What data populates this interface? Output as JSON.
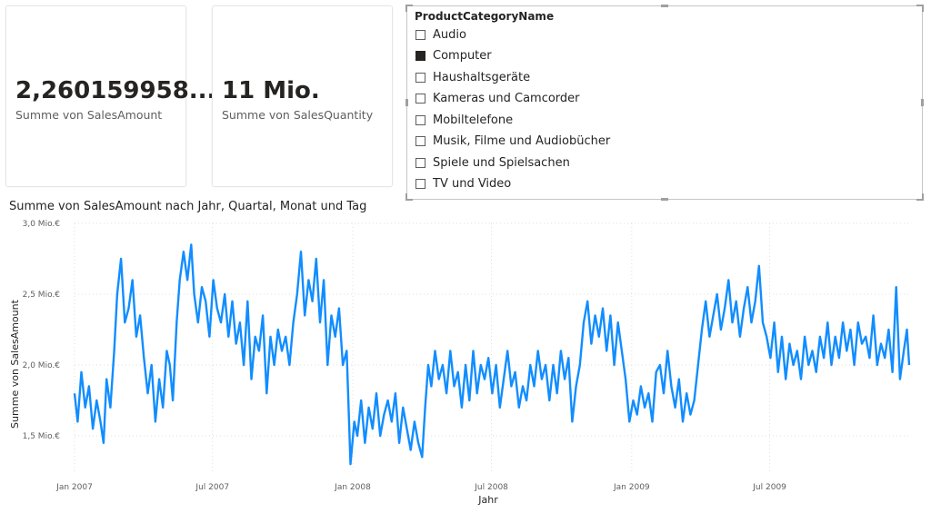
{
  "cards": [
    {
      "value": "2,260159958...",
      "label": "Summe von SalesAmount"
    },
    {
      "value": "11 Mio.",
      "label": "Summe von SalesQuantity"
    }
  ],
  "slicer": {
    "title": "ProductCategoryName",
    "items": [
      {
        "label": "Audio",
        "checked": false
      },
      {
        "label": "Computer",
        "checked": true
      },
      {
        "label": "Haushaltsgeräte",
        "checked": false
      },
      {
        "label": "Kameras und Camcorder",
        "checked": false
      },
      {
        "label": "Mobiltelefone",
        "checked": false
      },
      {
        "label": "Musik, Filme und Audiobücher",
        "checked": false
      },
      {
        "label": "Spiele und Spielsachen",
        "checked": false
      },
      {
        "label": "TV und Video",
        "checked": false
      }
    ]
  },
  "chart_data": {
    "type": "line",
    "title": "Summe von SalesAmount nach Jahr, Quartal, Monat und Tag",
    "xlabel": "Jahr",
    "ylabel": "Summe von SalesAmount",
    "x_range": [
      "2007-01-01",
      "2009-12-31"
    ],
    "ylim": [
      1.25,
      3.0
    ],
    "y_unit": "Mio.€",
    "y_ticks": [
      {
        "value": 1.5,
        "label": "1,5 Mio.€"
      },
      {
        "value": 2.0,
        "label": "2,0 Mio.€"
      },
      {
        "value": 2.5,
        "label": "2,5 Mio.€"
      },
      {
        "value": 3.0,
        "label": "3,0 Mio.€"
      }
    ],
    "x_ticks": [
      {
        "date": "2007-01-01",
        "label": "Jan 2007"
      },
      {
        "date": "2007-07-01",
        "label": "Jul 2007"
      },
      {
        "date": "2008-01-01",
        "label": "Jan 2008"
      },
      {
        "date": "2008-07-01",
        "label": "Jul 2008"
      },
      {
        "date": "2009-01-01",
        "label": "Jan 2009"
      },
      {
        "date": "2009-07-01",
        "label": "Jul 2009"
      }
    ],
    "grid": true,
    "color": "#118DFF",
    "series": [
      {
        "points": [
          [
            "2007-01-01",
            1.8
          ],
          [
            "2007-01-05",
            1.6
          ],
          [
            "2007-01-10",
            1.95
          ],
          [
            "2007-01-15",
            1.7
          ],
          [
            "2007-01-20",
            1.85
          ],
          [
            "2007-01-25",
            1.55
          ],
          [
            "2007-01-30",
            1.75
          ],
          [
            "2007-02-04",
            1.6
          ],
          [
            "2007-02-08",
            1.45
          ],
          [
            "2007-02-12",
            1.9
          ],
          [
            "2007-02-17",
            1.7
          ],
          [
            "2007-02-22",
            2.1
          ],
          [
            "2007-02-26",
            2.5
          ],
          [
            "2007-03-03",
            2.75
          ],
          [
            "2007-03-08",
            2.3
          ],
          [
            "2007-03-13",
            2.4
          ],
          [
            "2007-03-18",
            2.6
          ],
          [
            "2007-03-23",
            2.2
          ],
          [
            "2007-03-28",
            2.35
          ],
          [
            "2007-04-02",
            2.05
          ],
          [
            "2007-04-07",
            1.8
          ],
          [
            "2007-04-12",
            2.0
          ],
          [
            "2007-04-17",
            1.6
          ],
          [
            "2007-04-22",
            1.9
          ],
          [
            "2007-04-27",
            1.7
          ],
          [
            "2007-05-02",
            2.1
          ],
          [
            "2007-05-06",
            2.0
          ],
          [
            "2007-05-10",
            1.75
          ],
          [
            "2007-05-15",
            2.3
          ],
          [
            "2007-05-19",
            2.6
          ],
          [
            "2007-05-24",
            2.8
          ],
          [
            "2007-05-29",
            2.6
          ],
          [
            "2007-06-03",
            2.85
          ],
          [
            "2007-06-07",
            2.5
          ],
          [
            "2007-06-12",
            2.3
          ],
          [
            "2007-06-17",
            2.55
          ],
          [
            "2007-06-22",
            2.45
          ],
          [
            "2007-06-27",
            2.2
          ],
          [
            "2007-07-02",
            2.6
          ],
          [
            "2007-07-07",
            2.4
          ],
          [
            "2007-07-12",
            2.3
          ],
          [
            "2007-07-17",
            2.5
          ],
          [
            "2007-07-22",
            2.2
          ],
          [
            "2007-07-27",
            2.45
          ],
          [
            "2007-08-01",
            2.15
          ],
          [
            "2007-08-06",
            2.3
          ],
          [
            "2007-08-11",
            2.0
          ],
          [
            "2007-08-16",
            2.45
          ],
          [
            "2007-08-21",
            1.9
          ],
          [
            "2007-08-26",
            2.2
          ],
          [
            "2007-08-31",
            2.1
          ],
          [
            "2007-09-05",
            2.35
          ],
          [
            "2007-09-10",
            1.8
          ],
          [
            "2007-09-15",
            2.2
          ],
          [
            "2007-09-20",
            2.0
          ],
          [
            "2007-09-25",
            2.25
          ],
          [
            "2007-09-30",
            2.1
          ],
          [
            "2007-10-05",
            2.2
          ],
          [
            "2007-10-10",
            2.0
          ],
          [
            "2007-10-15",
            2.3
          ],
          [
            "2007-10-20",
            2.5
          ],
          [
            "2007-10-25",
            2.8
          ],
          [
            "2007-10-30",
            2.35
          ],
          [
            "2007-11-04",
            2.6
          ],
          [
            "2007-11-09",
            2.45
          ],
          [
            "2007-11-14",
            2.75
          ],
          [
            "2007-11-19",
            2.3
          ],
          [
            "2007-11-24",
            2.6
          ],
          [
            "2007-11-29",
            2.0
          ],
          [
            "2007-12-04",
            2.35
          ],
          [
            "2007-12-09",
            2.2
          ],
          [
            "2007-12-14",
            2.4
          ],
          [
            "2007-12-19",
            2.0
          ],
          [
            "2007-12-24",
            2.1
          ],
          [
            "2007-12-29",
            1.3
          ],
          [
            "2008-01-03",
            1.6
          ],
          [
            "2008-01-07",
            1.5
          ],
          [
            "2008-01-12",
            1.75
          ],
          [
            "2008-01-17",
            1.45
          ],
          [
            "2008-01-22",
            1.7
          ],
          [
            "2008-01-27",
            1.55
          ],
          [
            "2008-02-01",
            1.8
          ],
          [
            "2008-02-06",
            1.5
          ],
          [
            "2008-02-11",
            1.65
          ],
          [
            "2008-02-16",
            1.75
          ],
          [
            "2008-02-21",
            1.6
          ],
          [
            "2008-02-26",
            1.8
          ],
          [
            "2008-03-02",
            1.45
          ],
          [
            "2008-03-07",
            1.7
          ],
          [
            "2008-03-12",
            1.55
          ],
          [
            "2008-03-17",
            1.4
          ],
          [
            "2008-03-22",
            1.6
          ],
          [
            "2008-03-27",
            1.45
          ],
          [
            "2008-04-01",
            1.35
          ],
          [
            "2008-04-05",
            1.7
          ],
          [
            "2008-04-09",
            2.0
          ],
          [
            "2008-04-13",
            1.85
          ],
          [
            "2008-04-18",
            2.1
          ],
          [
            "2008-04-23",
            1.9
          ],
          [
            "2008-04-28",
            2.0
          ],
          [
            "2008-05-03",
            1.8
          ],
          [
            "2008-05-08",
            2.1
          ],
          [
            "2008-05-13",
            1.85
          ],
          [
            "2008-05-18",
            1.95
          ],
          [
            "2008-05-23",
            1.7
          ],
          [
            "2008-05-28",
            2.0
          ],
          [
            "2008-06-02",
            1.75
          ],
          [
            "2008-06-07",
            2.1
          ],
          [
            "2008-06-12",
            1.8
          ],
          [
            "2008-06-17",
            2.0
          ],
          [
            "2008-06-22",
            1.9
          ],
          [
            "2008-06-27",
            2.05
          ],
          [
            "2008-07-02",
            1.8
          ],
          [
            "2008-07-07",
            2.0
          ],
          [
            "2008-07-12",
            1.7
          ],
          [
            "2008-07-17",
            1.9
          ],
          [
            "2008-07-22",
            2.1
          ],
          [
            "2008-07-27",
            1.85
          ],
          [
            "2008-08-01",
            1.95
          ],
          [
            "2008-08-06",
            1.7
          ],
          [
            "2008-08-11",
            1.85
          ],
          [
            "2008-08-16",
            1.75
          ],
          [
            "2008-08-21",
            2.0
          ],
          [
            "2008-08-26",
            1.85
          ],
          [
            "2008-08-31",
            2.1
          ],
          [
            "2008-09-05",
            1.9
          ],
          [
            "2008-09-10",
            2.0
          ],
          [
            "2008-09-15",
            1.75
          ],
          [
            "2008-09-20",
            2.0
          ],
          [
            "2008-09-25",
            1.8
          ],
          [
            "2008-09-30",
            2.1
          ],
          [
            "2008-10-05",
            1.9
          ],
          [
            "2008-10-10",
            2.05
          ],
          [
            "2008-10-15",
            1.6
          ],
          [
            "2008-10-20",
            1.85
          ],
          [
            "2008-10-25",
            2.0
          ],
          [
            "2008-10-30",
            2.3
          ],
          [
            "2008-11-04",
            2.45
          ],
          [
            "2008-11-09",
            2.15
          ],
          [
            "2008-11-14",
            2.35
          ],
          [
            "2008-11-19",
            2.2
          ],
          [
            "2008-11-24",
            2.4
          ],
          [
            "2008-11-29",
            2.1
          ],
          [
            "2008-12-04",
            2.35
          ],
          [
            "2008-12-09",
            2.0
          ],
          [
            "2008-12-14",
            2.3
          ],
          [
            "2008-12-19",
            2.1
          ],
          [
            "2008-12-24",
            1.9
          ],
          [
            "2008-12-29",
            1.6
          ],
          [
            "2009-01-03",
            1.75
          ],
          [
            "2009-01-08",
            1.65
          ],
          [
            "2009-01-13",
            1.85
          ],
          [
            "2009-01-18",
            1.7
          ],
          [
            "2009-01-23",
            1.8
          ],
          [
            "2009-01-28",
            1.6
          ],
          [
            "2009-02-02",
            1.95
          ],
          [
            "2009-02-07",
            2.0
          ],
          [
            "2009-02-12",
            1.8
          ],
          [
            "2009-02-17",
            2.1
          ],
          [
            "2009-02-22",
            1.85
          ],
          [
            "2009-02-27",
            1.7
          ],
          [
            "2009-03-04",
            1.9
          ],
          [
            "2009-03-09",
            1.6
          ],
          [
            "2009-03-14",
            1.8
          ],
          [
            "2009-03-19",
            1.65
          ],
          [
            "2009-03-24",
            1.75
          ],
          [
            "2009-03-29",
            2.0
          ],
          [
            "2009-04-03",
            2.25
          ],
          [
            "2009-04-08",
            2.45
          ],
          [
            "2009-04-13",
            2.2
          ],
          [
            "2009-04-18",
            2.35
          ],
          [
            "2009-04-23",
            2.5
          ],
          [
            "2009-04-28",
            2.25
          ],
          [
            "2009-05-03",
            2.4
          ],
          [
            "2009-05-08",
            2.6
          ],
          [
            "2009-05-13",
            2.3
          ],
          [
            "2009-05-18",
            2.45
          ],
          [
            "2009-05-23",
            2.2
          ],
          [
            "2009-05-28",
            2.4
          ],
          [
            "2009-06-02",
            2.55
          ],
          [
            "2009-06-07",
            2.3
          ],
          [
            "2009-06-12",
            2.45
          ],
          [
            "2009-06-17",
            2.7
          ],
          [
            "2009-06-22",
            2.3
          ],
          [
            "2009-06-27",
            2.2
          ],
          [
            "2009-07-02",
            2.05
          ],
          [
            "2009-07-07",
            2.3
          ],
          [
            "2009-07-12",
            1.95
          ],
          [
            "2009-07-17",
            2.2
          ],
          [
            "2009-07-22",
            1.9
          ],
          [
            "2009-07-27",
            2.15
          ],
          [
            "2009-08-01",
            2.0
          ],
          [
            "2009-08-06",
            2.1
          ],
          [
            "2009-08-11",
            1.9
          ],
          [
            "2009-08-16",
            2.2
          ],
          [
            "2009-08-21",
            2.0
          ],
          [
            "2009-08-26",
            2.1
          ],
          [
            "2009-08-31",
            1.95
          ],
          [
            "2009-09-05",
            2.2
          ],
          [
            "2009-09-10",
            2.05
          ],
          [
            "2009-09-15",
            2.3
          ],
          [
            "2009-09-20",
            2.0
          ],
          [
            "2009-09-25",
            2.2
          ],
          [
            "2009-09-30",
            2.05
          ],
          [
            "2009-10-05",
            2.3
          ],
          [
            "2009-10-10",
            2.1
          ],
          [
            "2009-10-15",
            2.25
          ],
          [
            "2009-10-20",
            2.0
          ],
          [
            "2009-10-25",
            2.3
          ],
          [
            "2009-10-30",
            2.15
          ],
          [
            "2009-11-04",
            2.2
          ],
          [
            "2009-11-09",
            2.05
          ],
          [
            "2009-11-14",
            2.35
          ],
          [
            "2009-11-19",
            2.0
          ],
          [
            "2009-11-24",
            2.15
          ],
          [
            "2009-11-29",
            2.05
          ],
          [
            "2009-12-04",
            2.25
          ],
          [
            "2009-12-09",
            1.95
          ],
          [
            "2009-12-14",
            2.55
          ],
          [
            "2009-12-19",
            1.9
          ],
          [
            "2009-12-24",
            2.1
          ],
          [
            "2009-12-28",
            2.25
          ],
          [
            "2009-12-31",
            2.0
          ]
        ]
      }
    ]
  }
}
